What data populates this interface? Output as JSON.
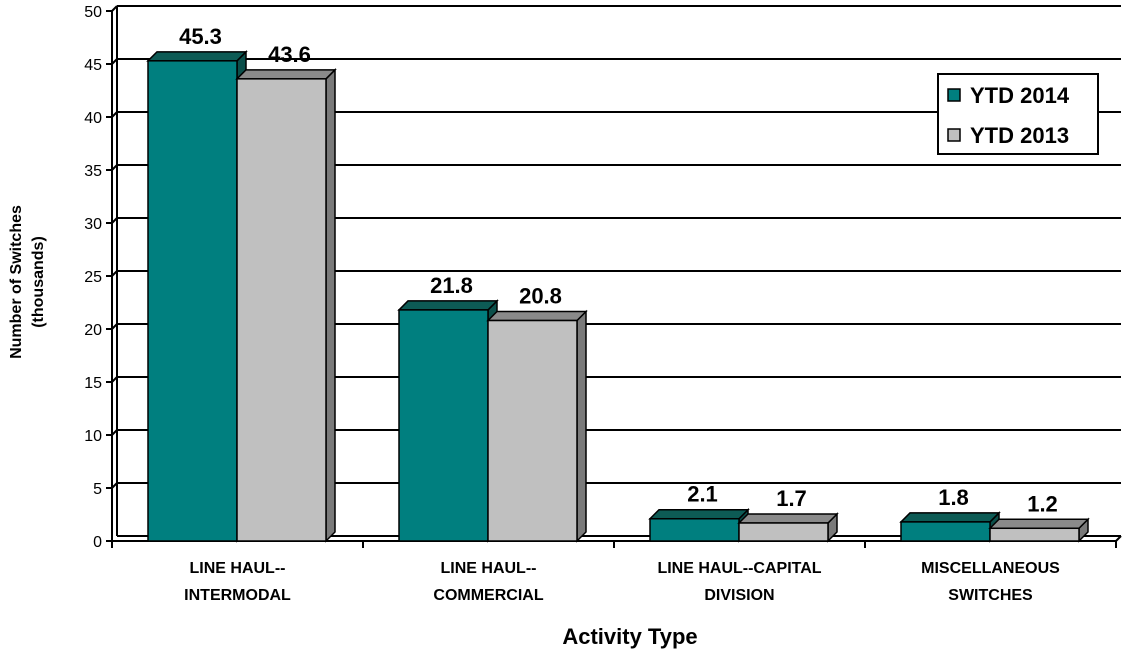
{
  "chart_data": {
    "type": "bar",
    "title": "",
    "xlabel": "Activity Type",
    "ylabel_lines": [
      "Number of Switches",
      "(thousands)"
    ],
    "ylim": [
      0,
      50
    ],
    "ytick_step": 5,
    "yticks": [
      "0",
      "5",
      "10",
      "15",
      "20",
      "25",
      "30",
      "35",
      "40",
      "45",
      "50"
    ],
    "grid": true,
    "legend_position": "top-right",
    "categories": [
      [
        "LINE HAUL--",
        "INTERMODAL"
      ],
      [
        "LINE HAUL--",
        "COMMERCIAL"
      ],
      [
        "LINE HAUL--CAPITAL",
        "DIVISION"
      ],
      [
        "MISCELLANEOUS",
        "SWITCHES"
      ]
    ],
    "series": [
      {
        "name": "YTD 2014",
        "values": [
          45.3,
          21.8,
          2.1,
          1.8
        ],
        "labels": [
          "45.3",
          "21.8",
          "2.1",
          "1.8"
        ],
        "color": "#007f7f",
        "top_color": "#0d5b55",
        "side_color": "#0b4f4a"
      },
      {
        "name": "YTD 2013",
        "values": [
          43.6,
          20.8,
          1.7,
          1.2
        ],
        "labels": [
          "43.6",
          "20.8",
          "1.7",
          "1.2"
        ],
        "color": "#c0c0c0",
        "top_color": "#8a8a8a",
        "side_color": "#7a7a7a"
      }
    ]
  }
}
